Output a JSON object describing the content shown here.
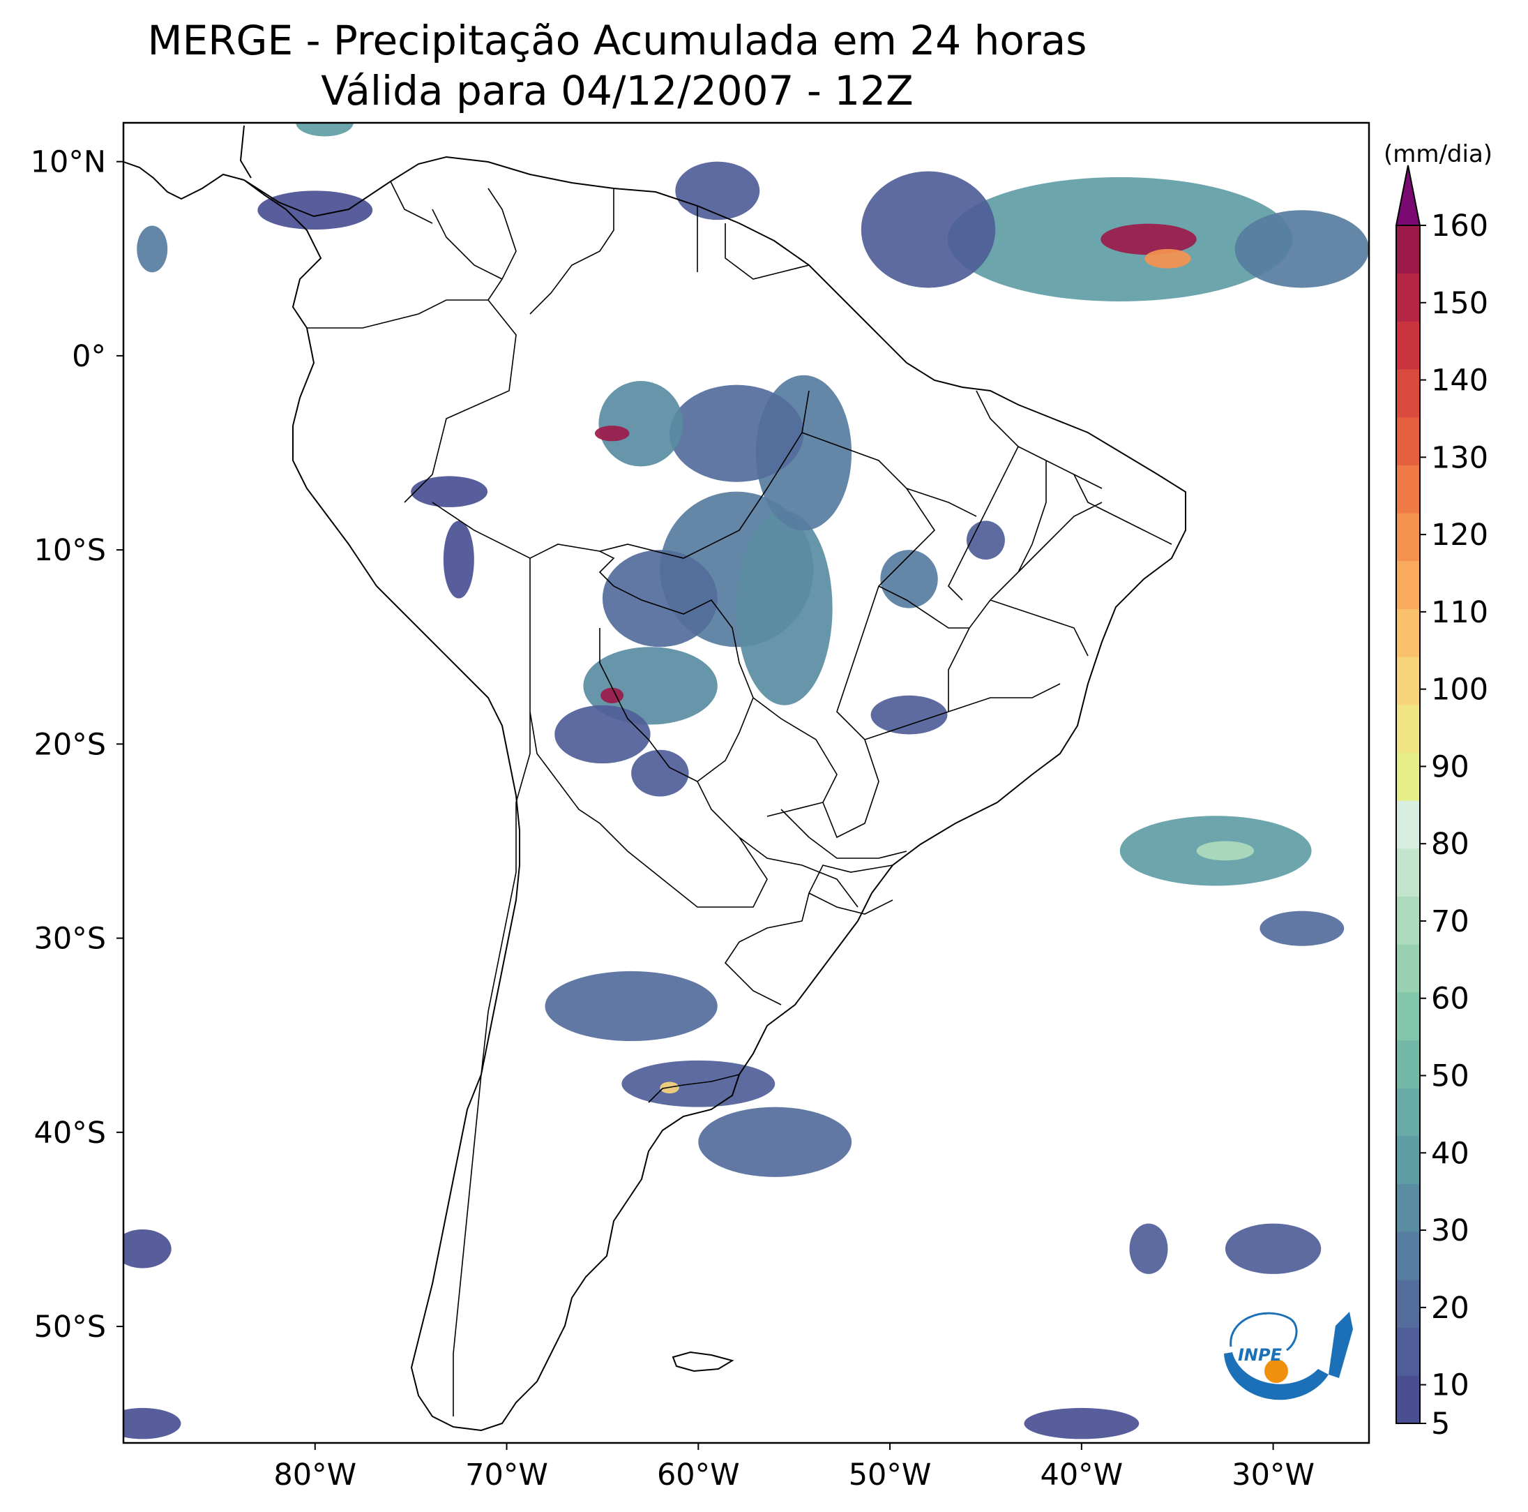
{
  "title": {
    "line1": "MERGE - Precipitação Acumulada em 24 horas",
    "line2": "Válida para 04/12/2007 - 12Z"
  },
  "map": {
    "lat_range": [
      -56,
      12
    ],
    "lon_range": [
      -90,
      -25
    ],
    "lat_labels": [
      {
        "v": 10,
        "t": "10°N"
      },
      {
        "v": 0,
        "t": "0°"
      },
      {
        "v": -10,
        "t": "10°S"
      },
      {
        "v": -20,
        "t": "20°S"
      },
      {
        "v": -30,
        "t": "30°S"
      },
      {
        "v": -40,
        "t": "40°S"
      },
      {
        "v": -50,
        "t": "50°S"
      }
    ],
    "lon_labels": [
      {
        "v": -80,
        "t": "80°W"
      },
      {
        "v": -70,
        "t": "70°W"
      },
      {
        "v": -60,
        "t": "60°W"
      },
      {
        "v": -50,
        "t": "50°W"
      },
      {
        "v": -40,
        "t": "40°W"
      },
      {
        "v": -30,
        "t": "30°W"
      }
    ],
    "precip_blobs": [
      {
        "lon": -63,
        "lat": -3.5,
        "rx": 2.2,
        "ry": 2.2,
        "v": 30
      },
      {
        "lon": -64.5,
        "lat": -4,
        "rx": 0.9,
        "ry": 0.4,
        "v": 160
      },
      {
        "lon": -58,
        "lat": -4,
        "rx": 3.5,
        "ry": 2.5,
        "v": 20
      },
      {
        "lon": -54.5,
        "lat": -5,
        "rx": 2.5,
        "ry": 4,
        "v": 25
      },
      {
        "lon": -58,
        "lat": -11,
        "rx": 4,
        "ry": 4,
        "v": 25
      },
      {
        "lon": -55.5,
        "lat": -13,
        "rx": 2.5,
        "ry": 5,
        "v": 35
      },
      {
        "lon": -62,
        "lat": -12.5,
        "rx": 3,
        "ry": 2.5,
        "v": 20
      },
      {
        "lon": -62.5,
        "lat": -17,
        "rx": 3.5,
        "ry": 2,
        "v": 30
      },
      {
        "lon": -64.5,
        "lat": -17.5,
        "rx": 0.6,
        "ry": 0.4,
        "v": 160
      },
      {
        "lon": -65,
        "lat": -19.5,
        "rx": 2.5,
        "ry": 1.5,
        "v": 12
      },
      {
        "lon": -62,
        "lat": -21.5,
        "rx": 1.5,
        "ry": 1.2,
        "v": 15
      },
      {
        "lon": -49,
        "lat": -11.5,
        "rx": 1.5,
        "ry": 1.5,
        "v": 25
      },
      {
        "lon": -45,
        "lat": -9.5,
        "rx": 1,
        "ry": 1,
        "v": 12
      },
      {
        "lon": -49,
        "lat": -18.5,
        "rx": 2,
        "ry": 1,
        "v": 15
      },
      {
        "lon": -73,
        "lat": -7,
        "rx": 2,
        "ry": 0.8,
        "v": 10
      },
      {
        "lon": -72.5,
        "lat": -10.5,
        "rx": 0.8,
        "ry": 2,
        "v": 8
      },
      {
        "lon": -63.5,
        "lat": -33.5,
        "rx": 4.5,
        "ry": 1.8,
        "v": 20
      },
      {
        "lon": -60,
        "lat": -37.5,
        "rx": 4,
        "ry": 1.2,
        "v": 15
      },
      {
        "lon": -61.5,
        "lat": -37.7,
        "rx": 0.5,
        "ry": 0.3,
        "v": 100
      },
      {
        "lon": -56,
        "lat": -40.5,
        "rx": 4,
        "ry": 1.8,
        "v": 20
      },
      {
        "lon": -38,
        "lat": 6,
        "rx": 9,
        "ry": 3.2,
        "v": 40
      },
      {
        "lon": -36.5,
        "lat": 6,
        "rx": 2.5,
        "ry": 0.8,
        "v": 160
      },
      {
        "lon": -35.5,
        "lat": 5,
        "rx": 1.2,
        "ry": 0.5,
        "v": 120
      },
      {
        "lon": -28.5,
        "lat": 5.5,
        "rx": 3.5,
        "ry": 2,
        "v": 25
      },
      {
        "lon": -33,
        "lat": -25.5,
        "rx": 5,
        "ry": 1.8,
        "v": 40
      },
      {
        "lon": -32.5,
        "lat": -25.5,
        "rx": 1.5,
        "ry": 0.5,
        "v": 70
      },
      {
        "lon": -28.5,
        "lat": -29.5,
        "rx": 2.2,
        "ry": 0.9,
        "v": 20
      },
      {
        "lon": -48,
        "lat": 6.5,
        "rx": 3.5,
        "ry": 3,
        "v": 12
      },
      {
        "lon": -59,
        "lat": 8.5,
        "rx": 2.2,
        "ry": 1.5,
        "v": 12
      },
      {
        "lon": -80,
        "lat": 7.5,
        "rx": 3,
        "ry": 1,
        "v": 10
      },
      {
        "lon": -88.5,
        "lat": 5.5,
        "rx": 0.8,
        "ry": 1.2,
        "v": 25
      },
      {
        "lon": -79.5,
        "lat": 12,
        "rx": 1.5,
        "ry": 0.7,
        "v": 40
      },
      {
        "lon": -36.5,
        "lat": -46,
        "rx": 1,
        "ry": 1.3,
        "v": 15
      },
      {
        "lon": -30,
        "lat": -46,
        "rx": 2.5,
        "ry": 1.3,
        "v": 12
      },
      {
        "lon": -89,
        "lat": -46,
        "rx": 1.5,
        "ry": 1,
        "v": 10
      },
      {
        "lon": -89,
        "lat": -55,
        "rx": 2,
        "ry": 0.8,
        "v": 10
      },
      {
        "lon": -40,
        "lat": -55,
        "rx": 3,
        "ry": 0.8,
        "v": 8
      }
    ],
    "logo_text": "INPE"
  },
  "colorbar": {
    "units": "(mm/dia)",
    "min": 5,
    "max": 160,
    "ticks": [
      5,
      10,
      20,
      30,
      40,
      50,
      60,
      70,
      80,
      90,
      100,
      110,
      120,
      130,
      140,
      150,
      160
    ],
    "colors": [
      "#4a4f92",
      "#4f5e98",
      "#546d9c",
      "#577da0",
      "#5a8ca2",
      "#5f9da5",
      "#67aaa6",
      "#74b9a8",
      "#84c6ab",
      "#98d0b1",
      "#aedbbd",
      "#c3e5ce",
      "#d7ede0",
      "#e6ee8a",
      "#f1e485",
      "#f7d47a",
      "#f9c16c",
      "#f9aa5d",
      "#f6924f",
      "#f07a46",
      "#e6603f",
      "#da4a3e",
      "#c9343f",
      "#b42644",
      "#9c1a4a"
    ],
    "extend_color": "#7a0a72"
  }
}
